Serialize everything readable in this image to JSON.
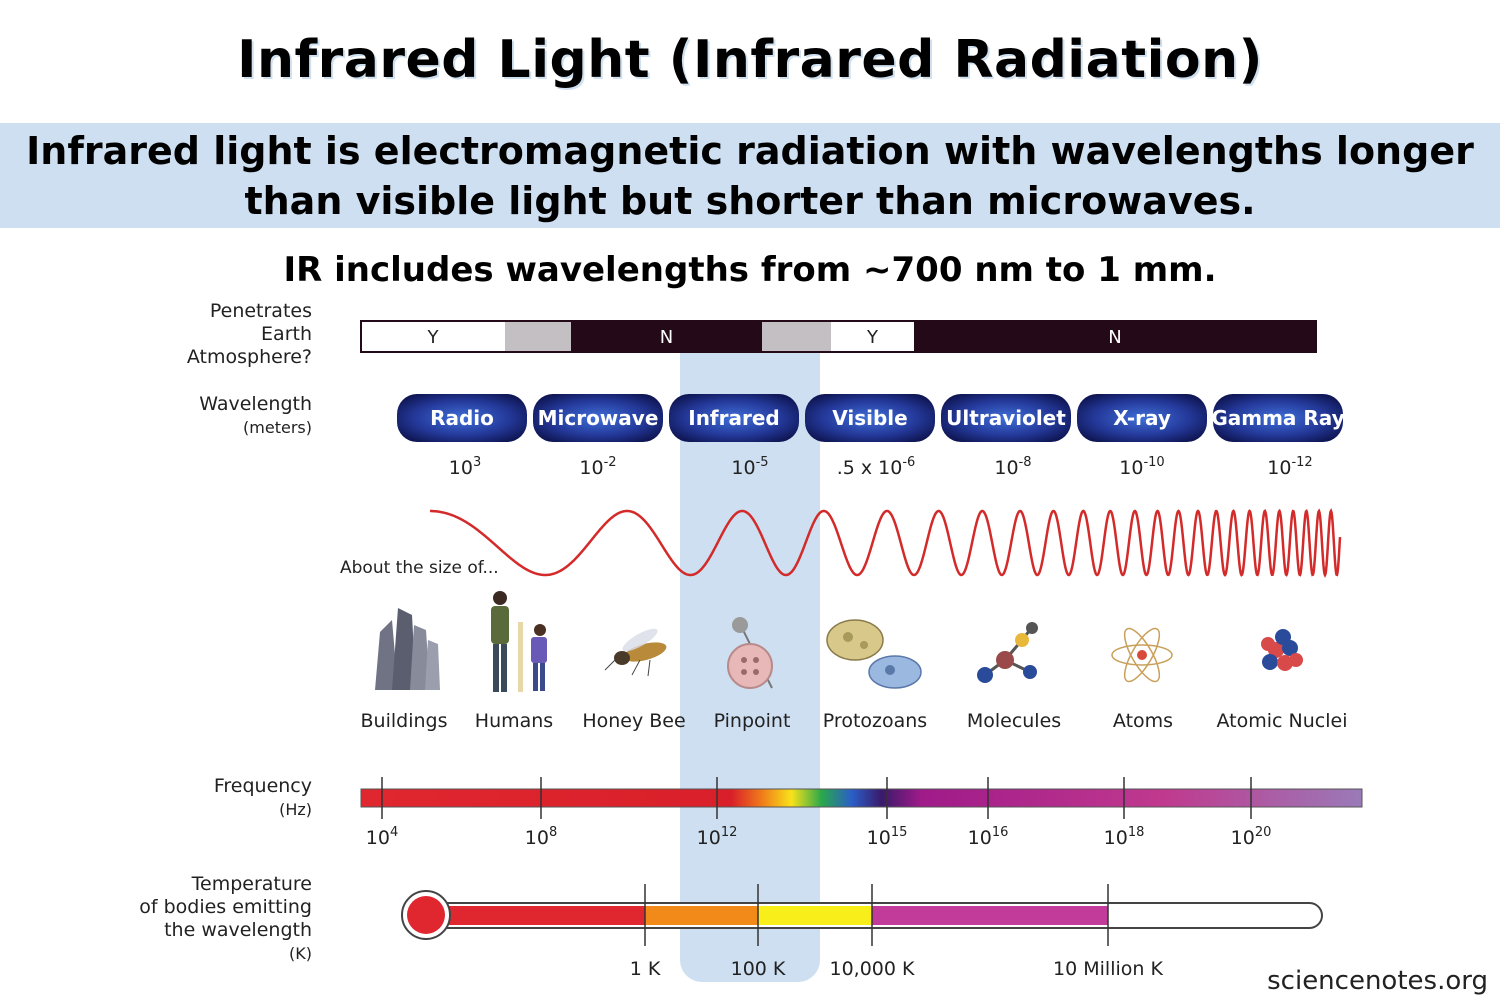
{
  "title": "Infrared Light (Infrared Radiation)",
  "definition_line1": "Infrared light is electromagnetic radiation with wavelengths longer",
  "definition_line2": "than visible light but shorter than microwaves.",
  "subtitle": "IR includes wavelengths from ~700 nm to 1 mm.",
  "site": "sciencenotes.org",
  "row_labels": {
    "atmosphere": [
      "Penetrates",
      "Earth",
      "Atmosphere?"
    ],
    "wavelength": "Wavelength",
    "wavelength_unit": "(meters)",
    "frequency": "Frequency",
    "frequency_unit": "(Hz)",
    "temperature": [
      "Temperature",
      "of bodies emitting",
      "the wavelength"
    ],
    "temperature_unit": "(K)"
  },
  "atmosphere": [
    {
      "label": "Y",
      "color": "#ffffff"
    },
    {
      "label": "",
      "color": "#c4bfc2"
    },
    {
      "label": "N",
      "color": "#240a18"
    },
    {
      "label": "",
      "color": "#c4bfc2"
    },
    {
      "label": "Y",
      "color": "#ffffff"
    },
    {
      "label": "N",
      "color": "#240a18"
    }
  ],
  "bands": [
    "Radio",
    "Microwave",
    "Infrared",
    "Visible",
    "Ultraviolet",
    "X-ray",
    "Gamma Ray"
  ],
  "wavelengths": [
    {
      "base": "10",
      "exp": "3"
    },
    {
      "base": "10",
      "exp": "-2"
    },
    {
      "base": "10",
      "exp": "-5"
    },
    {
      "base": ".5 x 10",
      "exp": "-6"
    },
    {
      "base": "10",
      "exp": "-8"
    },
    {
      "base": "10",
      "exp": "-10"
    },
    {
      "base": "10",
      "exp": "-12"
    }
  ],
  "size_caption": "About the size of...",
  "objects": [
    {
      "label": "Buildings",
      "icon": "buildings-icon"
    },
    {
      "label": "Humans",
      "icon": "humans-icon"
    },
    {
      "label": "Honey Bee",
      "icon": "honey-bee-icon"
    },
    {
      "label": "Pinpoint",
      "icon": "pinpoint-icon"
    },
    {
      "label": "Protozoans",
      "icon": "protozoans-icon"
    },
    {
      "label": "Molecules",
      "icon": "molecules-icon"
    },
    {
      "label": "Atoms",
      "icon": "atom-icon"
    },
    {
      "label": "Atomic Nuclei",
      "icon": "atomic-nuclei-icon"
    }
  ],
  "frequencies": [
    {
      "base": "10",
      "exp": "4"
    },
    {
      "base": "10",
      "exp": "8"
    },
    {
      "base": "10",
      "exp": "12"
    },
    {
      "base": "10",
      "exp": "15"
    },
    {
      "base": "10",
      "exp": "16"
    },
    {
      "base": "10",
      "exp": "18"
    },
    {
      "base": "10",
      "exp": "20"
    }
  ],
  "temperatures": [
    "1 K",
    "100 K",
    "10,000 K",
    "10 Million K"
  ],
  "colors": {
    "highlight": "#cddff0",
    "wave": "#d32a2a",
    "band_pill": "#2a3f9a",
    "dark_bar": "#240a18"
  }
}
